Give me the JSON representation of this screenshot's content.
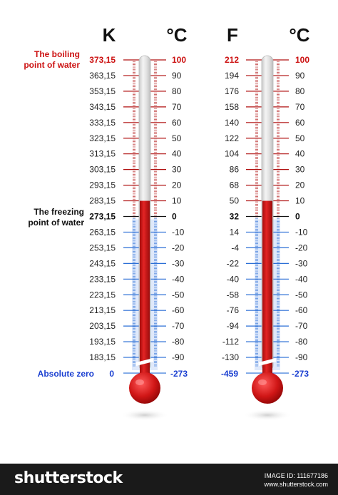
{
  "headers": {
    "left_a": "K",
    "left_b": "°C",
    "right_a": "F",
    "right_b": "°C"
  },
  "annotations": {
    "boiling": [
      "The boiling",
      "point of water"
    ],
    "freezing": [
      "The freezing",
      "point  of water"
    ],
    "absolute": "Absolute zero"
  },
  "kelvin_labels": [
    "373,15",
    "363,15",
    "353,15",
    "343,15",
    "333,15",
    "323,15",
    "313,15",
    "303,15",
    "293,15",
    "283,15",
    "273,15",
    "263,15",
    "253,15",
    "243,15",
    "233,15",
    "223,15",
    "213,15",
    "203,15",
    "193,15",
    "183,15"
  ],
  "celsius_labels": [
    "100",
    "90",
    "80",
    "70",
    "60",
    "50",
    "40",
    "30",
    "20",
    "10",
    "0",
    "-10",
    "-20",
    "-30",
    "-40",
    "-50",
    "-60",
    "-70",
    "-80",
    "-90"
  ],
  "fahrenheit_labels": [
    "212",
    "194",
    "176",
    "158",
    "140",
    "122",
    "104",
    "86",
    "68",
    "50",
    "32",
    "14",
    "-4",
    "-22",
    "-40",
    "-58",
    "-76",
    "-94",
    "-112",
    "-130"
  ],
  "zero_labels": {
    "kelvin": "0",
    "celsius": "-273",
    "fahrenheit": "-459"
  },
  "reading": {
    "celsius": 10
  },
  "colors": {
    "hot": "#cc1111",
    "cold": "#1a3fd1",
    "fluid": "#d41a1a",
    "hot_tick": "#b01010",
    "cold_tick": "#2b6fd6"
  },
  "watermark": "shutterstock",
  "footer": {
    "brand": "shutterstock",
    "image_id_label": "IMAGE ID: 111677186",
    "site": "www.shutterstock.com"
  }
}
